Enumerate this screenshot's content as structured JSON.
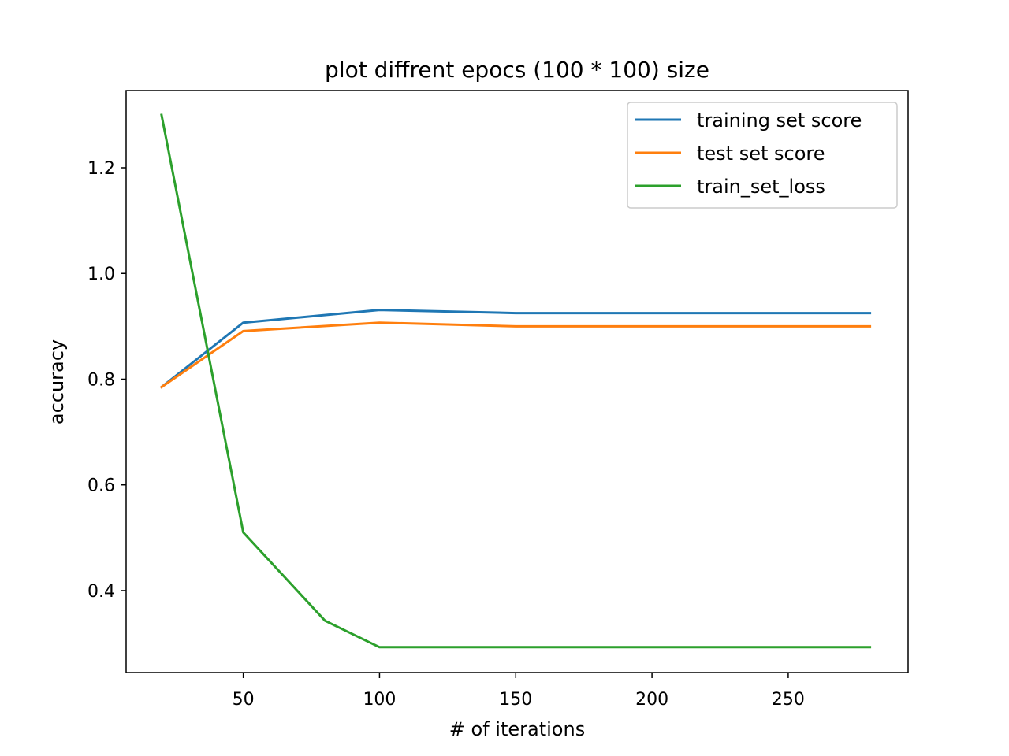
{
  "chart_data": {
    "type": "line",
    "title": "plot diffrent epocs (100 * 100) size",
    "xlabel": "# of iterations",
    "ylabel": "accuracy",
    "xlim": [
      7,
      294
    ],
    "ylim": [
      0.245,
      1.346
    ],
    "xticks": [
      50,
      100,
      150,
      200,
      250
    ],
    "yticks": [
      0.4,
      0.6,
      0.8,
      1.0,
      1.2
    ],
    "grid": false,
    "legend_position": "top-right",
    "series": [
      {
        "name": "training set score",
        "color": "#1f77b4",
        "x": [
          20,
          50,
          100,
          150,
          200,
          250,
          280
        ],
        "y": [
          0.785,
          0.907,
          0.931,
          0.925,
          0.925,
          0.925,
          0.925
        ]
      },
      {
        "name": "test set score",
        "color": "#ff7f0e",
        "x": [
          20,
          50,
          100,
          150,
          200,
          250,
          280
        ],
        "y": [
          0.785,
          0.891,
          0.907,
          0.9,
          0.9,
          0.9,
          0.9
        ]
      },
      {
        "name": "train_set_loss",
        "color": "#2ca02c",
        "x": [
          20,
          50,
          80,
          100,
          150,
          200,
          250,
          280
        ],
        "y": [
          1.3,
          0.51,
          0.343,
          0.293,
          0.293,
          0.293,
          0.293,
          0.293
        ]
      }
    ]
  }
}
